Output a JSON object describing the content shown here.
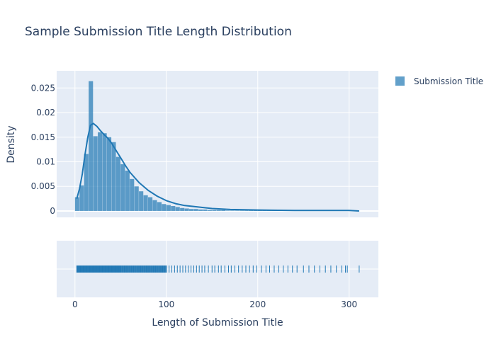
{
  "chart_data": {
    "type": "histogram",
    "title": "Sample Submission Title Length Distribution",
    "xlabel": "Length of Submission Title",
    "ylabel": "Density",
    "xlim": [
      -20,
      332
    ],
    "ylim": [
      -0.0013,
      0.0285
    ],
    "x_ticks": [
      0,
      100,
      200,
      300
    ],
    "y_ticks": [
      0,
      0.005,
      0.01,
      0.015,
      0.02,
      0.025
    ],
    "y_tick_labels": [
      "0",
      "0.005",
      "0.01",
      "0.015",
      "0.02",
      "0.025"
    ],
    "legend": {
      "position": "top-right",
      "entries": [
        "Submission Title"
      ]
    },
    "grid": true,
    "colors": {
      "bar": "#1f77b4",
      "bar_opacity": 0.7,
      "plot_bg": "#e5ecf6",
      "grid": "#ffffff"
    },
    "series": [
      {
        "name": "Submission Title",
        "bin_width": 5,
        "histogram": {
          "bin_starts": [
            0,
            5,
            10,
            15,
            20,
            25,
            30,
            35,
            40,
            45,
            50,
            55,
            60,
            65,
            70,
            75,
            80,
            85,
            90,
            95,
            100,
            105,
            110,
            115,
            120,
            125,
            130,
            135,
            140,
            145,
            150,
            155,
            160,
            165,
            170,
            175,
            180,
            185,
            190,
            195,
            200,
            205,
            210,
            215,
            220,
            225,
            230,
            235,
            240,
            245,
            250,
            255,
            260,
            265,
            270,
            275,
            280,
            285,
            290,
            295,
            300,
            305
          ],
          "density": [
            0.0028,
            0.0052,
            0.0116,
            0.0264,
            0.0152,
            0.016,
            0.0158,
            0.015,
            0.014,
            0.011,
            0.0095,
            0.0082,
            0.0065,
            0.005,
            0.004,
            0.0032,
            0.0028,
            0.0022,
            0.0018,
            0.0014,
            0.0012,
            0.001,
            0.0008,
            0.0006,
            0.0005,
            0.0004,
            0.0004,
            0.0003,
            0.0003,
            0.0002,
            0.0002,
            0.0002,
            0.0002,
            0.0001,
            0.0001,
            0.0001,
            0.0001,
            0.0001,
            0.0001,
            0.0001,
            0.0001,
            0.0001,
            0.0001,
            0.0001,
            0.0001,
            0.0001,
            0.0001,
            0.0001,
            0.0001,
            0.0001,
            0.0001,
            0.0001,
            0.0001,
            0.0001,
            0.0001,
            0.0001,
            0.0001,
            0.0001,
            0.0001,
            0.0001,
            0.0001,
            0.0001
          ]
        },
        "kde": {
          "x": [
            2,
            5,
            8,
            11,
            14,
            17,
            20,
            24,
            28,
            32,
            36,
            40,
            45,
            50,
            55,
            60,
            70,
            80,
            90,
            100,
            110,
            120,
            135,
            150,
            170,
            200,
            240,
            280,
            300,
            311
          ],
          "y": [
            0.0025,
            0.0045,
            0.0075,
            0.0115,
            0.015,
            0.0174,
            0.0178,
            0.0172,
            0.0163,
            0.0155,
            0.0148,
            0.0138,
            0.0123,
            0.0108,
            0.0093,
            0.0079,
            0.0058,
            0.0042,
            0.003,
            0.0021,
            0.0015,
            0.0011,
            0.0008,
            0.0005,
            0.0003,
            0.0002,
            0.0001,
            0.0001,
            0.0001,
            0.0
          ]
        },
        "rug": [
          2,
          3,
          4,
          5,
          6,
          7,
          8,
          9,
          10,
          11,
          12,
          13,
          14,
          15,
          16,
          17,
          18,
          19,
          20,
          21,
          22,
          23,
          24,
          25,
          26,
          27,
          28,
          29,
          30,
          31,
          32,
          33,
          34,
          35,
          36,
          37,
          38,
          39,
          40,
          41,
          42,
          43,
          44,
          45,
          46,
          47,
          48,
          49,
          50,
          52,
          54,
          56,
          58,
          60,
          62,
          64,
          66,
          68,
          70,
          72,
          74,
          76,
          78,
          80,
          82,
          84,
          86,
          88,
          90,
          92,
          94,
          96,
          98,
          100,
          103,
          106,
          109,
          112,
          115,
          118,
          121,
          124,
          127,
          130,
          133,
          136,
          139,
          142,
          146,
          150,
          153,
          157,
          160,
          164,
          168,
          171,
          175,
          179,
          183,
          187,
          191,
          195,
          199,
          204,
          209,
          213,
          218,
          223,
          228,
          233,
          238,
          243,
          250,
          256,
          262,
          268,
          274,
          280,
          286,
          292,
          296,
          298,
          311
        ]
      }
    ]
  }
}
